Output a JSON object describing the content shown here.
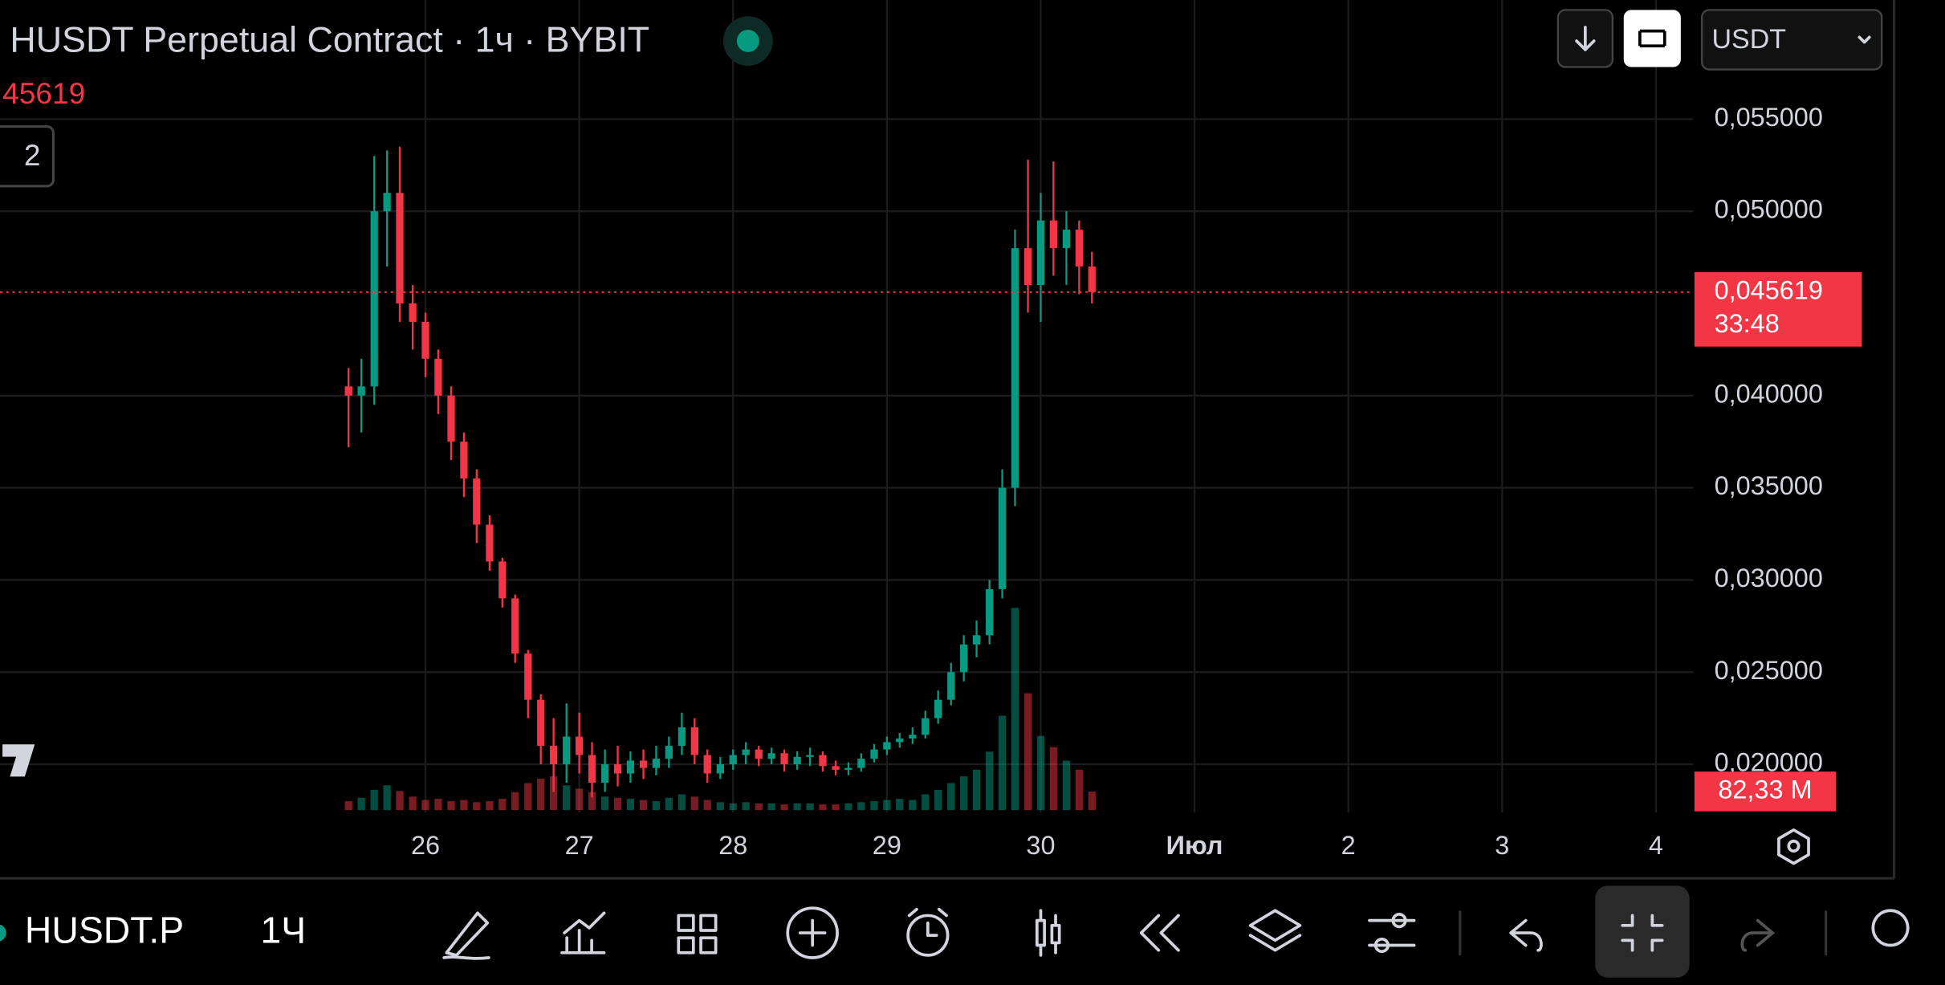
{
  "legend": {
    "title": "HUSDT Perpetual Contract · 1ч · BYBIT",
    "price": "45619",
    "badge": "2"
  },
  "header": {
    "currency": "USDT"
  },
  "toolbar": {
    "symbol": "HUSDT.P",
    "interval": "1Ч"
  },
  "chart_data": {
    "type": "candlestick",
    "up_color": "#089981",
    "down_color": "#f23645",
    "grid": true,
    "x": [
      25.5,
      25.583,
      25.667,
      25.75,
      25.833,
      25.917,
      26,
      26.083,
      26.167,
      26.25,
      26.333,
      26.417,
      26.5,
      26.583,
      26.667,
      26.75,
      26.833,
      26.917,
      27,
      27.083,
      27.167,
      27.25,
      27.333,
      27.417,
      27.5,
      27.583,
      27.667,
      27.75,
      27.833,
      27.917,
      28,
      28.083,
      28.167,
      28.25,
      28.333,
      28.417,
      28.5,
      28.583,
      28.667,
      28.75,
      28.833,
      28.917,
      29,
      29.083,
      29.167,
      29.25,
      29.333,
      29.417,
      29.5,
      29.583,
      29.667,
      29.75,
      29.833,
      29.917,
      30,
      30.083,
      30.167,
      30.25,
      30.333
    ],
    "open": [
      0.0405,
      0.04,
      0.0405,
      0.05,
      0.051,
      0.045,
      0.044,
      0.042,
      0.04,
      0.0375,
      0.0355,
      0.033,
      0.031,
      0.029,
      0.026,
      0.0235,
      0.021,
      0.02,
      0.0215,
      0.0205,
      0.019,
      0.02,
      0.0195,
      0.0202,
      0.0198,
      0.0203,
      0.021,
      0.022,
      0.0205,
      0.0195,
      0.02,
      0.0205,
      0.0208,
      0.0203,
      0.0206,
      0.02,
      0.0204,
      0.0205,
      0.0199,
      0.0197,
      0.0198,
      0.0203,
      0.0208,
      0.0212,
      0.0214,
      0.0216,
      0.0225,
      0.0235,
      0.025,
      0.0265,
      0.027,
      0.0295,
      0.035,
      0.048,
      0.046,
      0.0495,
      0.048,
      0.049,
      0.047
    ],
    "high": [
      0.0415,
      0.042,
      0.053,
      0.0533,
      0.0535,
      0.046,
      0.0445,
      0.0425,
      0.0405,
      0.038,
      0.036,
      0.0335,
      0.0312,
      0.0292,
      0.0262,
      0.0238,
      0.0225,
      0.0233,
      0.0228,
      0.0212,
      0.0208,
      0.021,
      0.0207,
      0.0208,
      0.021,
      0.0215,
      0.0228,
      0.0225,
      0.0208,
      0.0204,
      0.0208,
      0.0212,
      0.021,
      0.0209,
      0.0208,
      0.0207,
      0.0209,
      0.0207,
      0.0202,
      0.0201,
      0.0206,
      0.0211,
      0.0215,
      0.0217,
      0.022,
      0.0229,
      0.024,
      0.0255,
      0.027,
      0.0278,
      0.03,
      0.036,
      0.049,
      0.0528,
      0.051,
      0.0527,
      0.05,
      0.0495,
      0.0478
    ],
    "low": [
      0.0372,
      0.038,
      0.0395,
      0.047,
      0.044,
      0.0425,
      0.041,
      0.039,
      0.0365,
      0.0345,
      0.032,
      0.0305,
      0.0285,
      0.0255,
      0.0225,
      0.02,
      0.0185,
      0.019,
      0.0195,
      0.0182,
      0.0185,
      0.0188,
      0.019,
      0.0192,
      0.0194,
      0.0198,
      0.0205,
      0.02,
      0.019,
      0.0192,
      0.0197,
      0.02,
      0.0199,
      0.02,
      0.0196,
      0.0197,
      0.0199,
      0.0196,
      0.0194,
      0.0194,
      0.0196,
      0.0201,
      0.0205,
      0.0209,
      0.0211,
      0.0214,
      0.0222,
      0.0232,
      0.0245,
      0.0258,
      0.0265,
      0.029,
      0.034,
      0.0445,
      0.044,
      0.0465,
      0.046,
      0.0455,
      0.045
    ],
    "close": [
      0.04,
      0.0405,
      0.05,
      0.051,
      0.045,
      0.044,
      0.042,
      0.04,
      0.0375,
      0.0355,
      0.033,
      0.031,
      0.029,
      0.026,
      0.0235,
      0.021,
      0.02,
      0.0215,
      0.0205,
      0.019,
      0.02,
      0.0195,
      0.0202,
      0.0198,
      0.0203,
      0.021,
      0.022,
      0.0205,
      0.0195,
      0.02,
      0.0205,
      0.0208,
      0.0203,
      0.0206,
      0.02,
      0.0204,
      0.0205,
      0.0199,
      0.0197,
      0.0198,
      0.0203,
      0.0208,
      0.0212,
      0.0214,
      0.0216,
      0.0225,
      0.0235,
      0.025,
      0.0265,
      0.027,
      0.0295,
      0.035,
      0.048,
      0.046,
      0.0495,
      0.048,
      0.049,
      0.047,
      0.045619
    ],
    "volume": [
      40,
      55,
      90,
      110,
      85,
      60,
      45,
      50,
      40,
      45,
      35,
      40,
      50,
      80,
      120,
      140,
      150,
      110,
      95,
      80,
      60,
      55,
      50,
      45,
      40,
      55,
      70,
      60,
      45,
      35,
      30,
      35,
      30,
      30,
      25,
      30,
      30,
      25,
      25,
      30,
      35,
      40,
      45,
      50,
      45,
      70,
      90,
      120,
      150,
      180,
      260,
      420,
      900,
      520,
      330,
      280,
      220,
      180,
      82.33
    ],
    "volume_lim": [
      0,
      900
    ],
    "volume_label": "82,33 M",
    "xlim": [
      23.234,
      34.242
    ],
    "xticks": [
      26,
      27,
      28,
      29,
      30,
      {
        "value": 31,
        "label": "Июл"
      },
      {
        "value": 32,
        "label": "2"
      },
      {
        "value": 33,
        "label": "3"
      },
      {
        "value": 34,
        "label": "4"
      }
    ],
    "ylim": [
      0.01738,
      0.06146
    ],
    "yticks": [
      {
        "value": 0.02,
        "label": "0,020000"
      },
      {
        "value": 0.025,
        "label": "0,025000"
      },
      {
        "value": 0.03,
        "label": "0,030000"
      },
      {
        "value": 0.035,
        "label": "0,035000"
      },
      {
        "value": 0.04,
        "label": "0,040000"
      },
      {
        "value": 0.05,
        "label": "0,050000"
      },
      {
        "value": 0.055,
        "label": "0,055000"
      }
    ],
    "price_line": {
      "value": 0.045619,
      "label": "0,045619"
    },
    "countdown": "33:48"
  }
}
